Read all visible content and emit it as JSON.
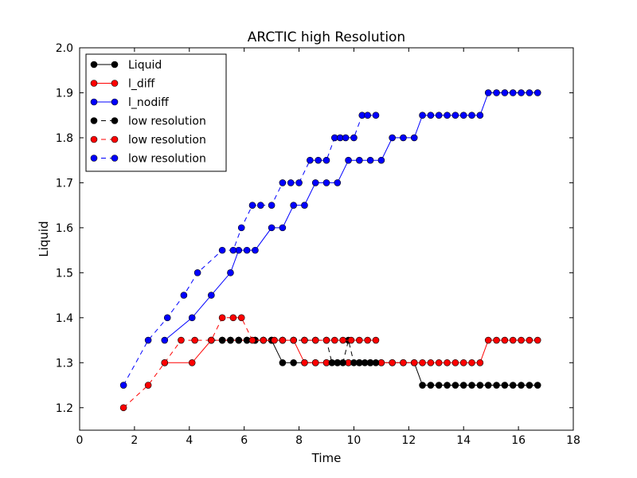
{
  "chart_data": {
    "type": "line",
    "title": "ARCTIC high Resolution",
    "xlabel": "Time",
    "ylabel": "Liquid",
    "xlim": [
      0,
      18
    ],
    "ylim": [
      1.15,
      2.0
    ],
    "xticks": [
      0,
      2,
      4,
      6,
      8,
      10,
      12,
      14,
      16,
      18
    ],
    "yticks": [
      1.2,
      1.3,
      1.4,
      1.5,
      1.6,
      1.7,
      1.8,
      1.9,
      2.0
    ],
    "xtick_labels": [
      "0",
      "2",
      "4",
      "6",
      "8",
      "10",
      "12",
      "14",
      "16",
      "18"
    ],
    "ytick_labels": [
      "1.2",
      "1.3",
      "1.4",
      "1.5",
      "1.6",
      "1.7",
      "1.8",
      "1.9",
      "2.0"
    ],
    "legend_position": "top-left",
    "grid": false,
    "series": [
      {
        "name": "Liquid",
        "color": "#000000",
        "linestyle": "solid",
        "marker": "circle",
        "x": [
          5.2,
          5.5,
          5.8,
          6.1,
          6.4,
          6.7,
          7.0,
          7.4,
          7.8,
          8.2,
          8.6,
          9.0,
          9.4,
          9.8,
          10.2,
          10.6,
          11.0,
          11.4,
          11.8,
          12.2,
          12.5,
          12.8,
          13.1,
          13.4,
          13.7,
          14.0,
          14.3,
          14.6,
          14.9,
          15.2,
          15.5,
          15.8,
          16.1,
          16.4,
          16.7
        ],
        "y": [
          1.35,
          1.35,
          1.35,
          1.35,
          1.35,
          1.35,
          1.35,
          1.3,
          1.3,
          1.3,
          1.3,
          1.3,
          1.3,
          1.3,
          1.3,
          1.3,
          1.3,
          1.3,
          1.3,
          1.3,
          1.25,
          1.25,
          1.25,
          1.25,
          1.25,
          1.25,
          1.25,
          1.25,
          1.25,
          1.25,
          1.25,
          1.25,
          1.25,
          1.25,
          1.25
        ]
      },
      {
        "name": "l_diff",
        "color": "#ff0000",
        "linestyle": "solid",
        "marker": "circle",
        "x": [
          3.1,
          4.1,
          4.8,
          5.2,
          5.5,
          5.8,
          6.1,
          6.4,
          6.7,
          7.0,
          7.4,
          7.8,
          8.2,
          8.6,
          9.0,
          9.4,
          9.8,
          10.2,
          10.6,
          11.0,
          11.4,
          11.8,
          12.2,
          12.5,
          12.8,
          13.1,
          13.4,
          13.7,
          14.0,
          14.3,
          14.6,
          14.9,
          15.2,
          15.5,
          15.8,
          16.1,
          16.4,
          16.7
        ],
        "y": [
          1.3,
          1.3,
          1.35,
          1.35,
          1.35,
          1.35,
          1.35,
          1.35,
          1.35,
          1.35,
          1.35,
          1.35,
          1.3,
          1.3,
          1.3,
          1.3,
          1.3,
          1.3,
          1.3,
          1.3,
          1.3,
          1.3,
          1.3,
          1.3,
          1.3,
          1.3,
          1.3,
          1.3,
          1.3,
          1.3,
          1.3,
          1.35,
          1.35,
          1.35,
          1.35,
          1.35,
          1.35,
          1.35
        ]
      },
      {
        "name": "l_nodiff",
        "color": "#0000ff",
        "linestyle": "solid",
        "marker": "circle",
        "x": [
          3.1,
          4.1,
          4.8,
          5.5,
          5.8,
          6.1,
          6.4,
          7.0,
          7.4,
          7.8,
          8.2,
          8.6,
          9.0,
          9.4,
          9.8,
          10.2,
          10.6,
          11.0,
          11.4,
          11.8,
          12.2,
          12.5,
          12.8,
          13.1,
          13.4,
          13.7,
          14.0,
          14.3,
          14.6,
          14.9,
          15.2,
          15.5,
          15.8,
          16.1,
          16.4,
          16.7
        ],
        "y": [
          1.35,
          1.4,
          1.45,
          1.5,
          1.55,
          1.55,
          1.55,
          1.6,
          1.6,
          1.65,
          1.65,
          1.7,
          1.7,
          1.7,
          1.75,
          1.75,
          1.75,
          1.75,
          1.8,
          1.8,
          1.8,
          1.85,
          1.85,
          1.85,
          1.85,
          1.85,
          1.85,
          1.85,
          1.85,
          1.9,
          1.9,
          1.9,
          1.9,
          1.9,
          1.9,
          1.9
        ]
      },
      {
        "name": "low resolution",
        "color": "#000000",
        "linestyle": "dashed",
        "marker": "circle",
        "x": [
          4.8,
          5.2,
          5.5,
          5.8,
          6.1,
          6.4,
          6.7,
          7.0,
          7.4,
          7.8,
          8.2,
          8.6,
          9.0,
          9.2,
          9.4,
          9.6,
          9.8,
          10.0,
          10.2,
          10.4,
          10.6,
          10.8
        ],
        "y": [
          1.35,
          1.35,
          1.35,
          1.35,
          1.35,
          1.35,
          1.35,
          1.35,
          1.35,
          1.35,
          1.35,
          1.35,
          1.35,
          1.3,
          1.3,
          1.3,
          1.35,
          1.3,
          1.3,
          1.3,
          1.3,
          1.3
        ]
      },
      {
        "name": "low resolution",
        "color": "#ff0000",
        "linestyle": "dashed",
        "marker": "circle",
        "x": [
          1.6,
          2.5,
          3.1,
          3.7,
          4.2,
          4.8,
          5.2,
          5.6,
          5.9,
          6.3,
          6.7,
          7.1,
          7.4,
          7.8,
          8.2,
          8.6,
          9.0,
          9.3,
          9.6,
          9.9,
          10.2,
          10.5,
          10.8
        ],
        "y": [
          1.2,
          1.25,
          1.3,
          1.35,
          1.35,
          1.35,
          1.4,
          1.4,
          1.4,
          1.35,
          1.35,
          1.35,
          1.35,
          1.35,
          1.35,
          1.35,
          1.35,
          1.35,
          1.35,
          1.35,
          1.35,
          1.35,
          1.35
        ]
      },
      {
        "name": "low resolution",
        "color": "#0000ff",
        "linestyle": "dashed",
        "marker": "circle",
        "x": [
          1.6,
          2.5,
          3.2,
          3.8,
          4.3,
          5.2,
          5.6,
          5.9,
          6.3,
          6.6,
          7.0,
          7.4,
          7.7,
          8.0,
          8.4,
          8.7,
          9.0,
          9.3,
          9.5,
          9.7,
          10.0,
          10.3,
          10.5,
          10.8
        ],
        "y": [
          1.25,
          1.35,
          1.4,
          1.45,
          1.5,
          1.55,
          1.55,
          1.6,
          1.65,
          1.65,
          1.65,
          1.7,
          1.7,
          1.7,
          1.75,
          1.75,
          1.75,
          1.8,
          1.8,
          1.8,
          1.8,
          1.85,
          1.85,
          1.85
        ]
      }
    ]
  }
}
